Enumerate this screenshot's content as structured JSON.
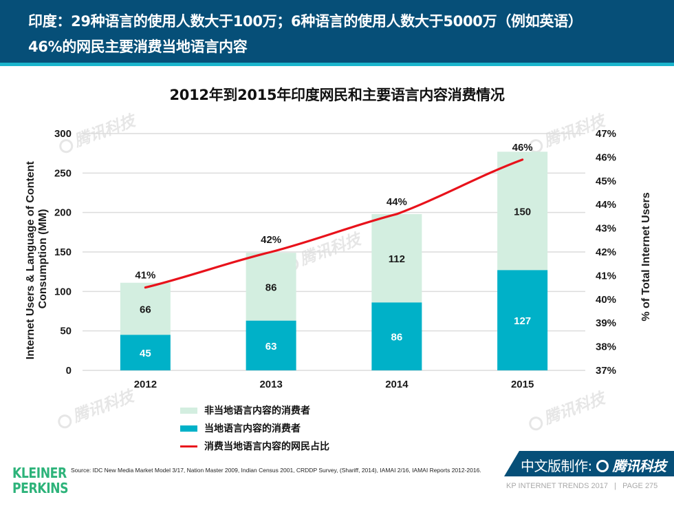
{
  "header": {
    "line1": "印度：29种语言的使用人数大于100万；6种语言的使用人数大于5000万（例如英语）",
    "line2": "46%的网民主要消费当地语言内容"
  },
  "colors": {
    "header_bg": "#064f78",
    "header_stripe": "#1ab4cc",
    "non_local": "#d3eee0",
    "local": "#00b1c8",
    "line": "#e8121b",
    "logo": "#2db37a"
  },
  "chart_data": {
    "type": "bar",
    "stacked": true,
    "title": "2012年到2015年印度网民和主要语言内容消费情况",
    "categories": [
      "2012",
      "2013",
      "2014",
      "2015"
    ],
    "series": [
      {
        "name": "当地语言内容的消费者",
        "type": "bar",
        "axis": "left",
        "values": [
          45,
          63,
          86,
          127
        ],
        "labels": [
          "45",
          "63",
          "86",
          "127"
        ]
      },
      {
        "name": "非当地语言内容的消费者",
        "type": "bar",
        "axis": "left",
        "values": [
          66,
          86,
          112,
          150
        ],
        "labels": [
          "66",
          "86",
          "112",
          "150"
        ]
      },
      {
        "name": "消费当地语言内容的网民占比",
        "type": "line",
        "axis": "right",
        "values": [
          40.5,
          42.0,
          43.6,
          45.9
        ],
        "labels": [
          "41%",
          "42%",
          "44%",
          "46%"
        ]
      }
    ],
    "ylabel": "Internet Users & Language of Content Consumption (MM)",
    "ylabel_lines": [
      "Internet Users & Language of Content",
      "Consumption (MM)"
    ],
    "y2label": "% of Total Internet Users",
    "ylim": [
      0,
      300
    ],
    "yticks": [
      "0",
      "50",
      "100",
      "150",
      "200",
      "250",
      "300"
    ],
    "y2lim": [
      37,
      47
    ],
    "y2ticks": [
      "37%",
      "38%",
      "39%",
      "40%",
      "41%",
      "42%",
      "43%",
      "44%",
      "45%",
      "46%",
      "47%"
    ],
    "grid": true,
    "legend_position": "bottom-left",
    "legend": [
      {
        "label": "非当地语言内容的消费者",
        "kind": "bar"
      },
      {
        "label": "当地语言内容的消费者",
        "kind": "bar"
      },
      {
        "label": "消费当地语言内容的网民占比",
        "kind": "line"
      }
    ]
  },
  "footer": {
    "logo_line1": "KLEINER",
    "logo_line2": "PERKINS",
    "source": "Source: IDC New Media Market Model 3/17, Nation Master 2009, Indian Census 2001, CRDDP Survey, (Shariff, 2014), IAMAI 2/16,  IAMAI Reports 2012-2016.",
    "banner_prefix": "中文版制作:",
    "banner_brand": "腾讯科技",
    "page_info": "KP INTERNET TRENDS 2017   |   PAGE 275"
  },
  "watermark": "腾讯科技"
}
